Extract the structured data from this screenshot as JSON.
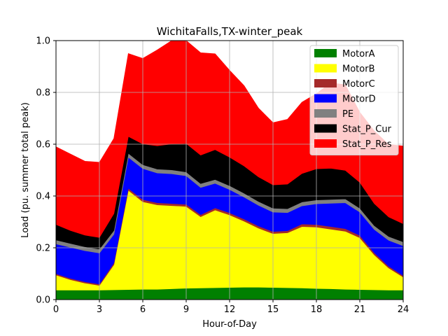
{
  "chart_data": {
    "type": "area",
    "stacked": true,
    "title": "WichitaFalls,TX-winter_peak",
    "xlabel": "Hour-of-Day",
    "ylabel": "Load (pu. summer total peak)",
    "xlim": [
      0,
      24
    ],
    "ylim": [
      0,
      1.0
    ],
    "xticks": [
      "0",
      "3",
      "6",
      "9",
      "12",
      "15",
      "18",
      "21",
      "24"
    ],
    "xtick_values": [
      0,
      3,
      6,
      9,
      12,
      15,
      18,
      21,
      24
    ],
    "yticks": [
      "0.0",
      "0.2",
      "0.4",
      "0.6",
      "0.8",
      "1.0"
    ],
    "ytick_values": [
      0,
      0.2,
      0.4,
      0.6,
      0.8,
      1.0
    ],
    "grid": true,
    "legend_position": "top-right",
    "x": [
      0,
      1,
      2,
      3,
      4,
      5,
      6,
      7,
      8,
      9,
      10,
      11,
      12,
      13,
      14,
      15,
      16,
      17,
      18,
      19,
      20,
      21,
      22,
      23,
      24
    ],
    "series": [
      {
        "name": "MotorA",
        "color": "#008000",
        "values": [
          0.037,
          0.037,
          0.037,
          0.037,
          0.038,
          0.039,
          0.04,
          0.04,
          0.042,
          0.044,
          0.045,
          0.046,
          0.047,
          0.048,
          0.048,
          0.047,
          0.046,
          0.045,
          0.043,
          0.042,
          0.04,
          0.039,
          0.038,
          0.037,
          0.037
        ]
      },
      {
        "name": "MotorB",
        "color": "#ffff00",
        "values": [
          0.058,
          0.04,
          0.027,
          0.018,
          0.097,
          0.383,
          0.338,
          0.326,
          0.321,
          0.316,
          0.275,
          0.3,
          0.28,
          0.255,
          0.228,
          0.208,
          0.212,
          0.237,
          0.237,
          0.23,
          0.224,
          0.2,
          0.135,
          0.085,
          0.05
        ]
      },
      {
        "name": "MotorC",
        "color": "#a52a2a",
        "values": [
          0.005,
          0.005,
          0.005,
          0.005,
          0.007,
          0.008,
          0.008,
          0.008,
          0.008,
          0.008,
          0.008,
          0.008,
          0.008,
          0.008,
          0.008,
          0.008,
          0.008,
          0.01,
          0.01,
          0.01,
          0.01,
          0.009,
          0.008,
          0.007,
          0.006
        ]
      },
      {
        "name": "MotorD",
        "color": "#0000ff",
        "values": [
          0.115,
          0.12,
          0.12,
          0.12,
          0.11,
          0.12,
          0.12,
          0.115,
          0.115,
          0.11,
          0.105,
          0.095,
          0.09,
          0.085,
          0.08,
          0.075,
          0.07,
          0.07,
          0.08,
          0.09,
          0.1,
          0.09,
          0.09,
          0.1,
          0.115
        ]
      },
      {
        "name": "PE",
        "color": "#808080",
        "values": [
          0.015,
          0.015,
          0.015,
          0.015,
          0.015,
          0.015,
          0.015,
          0.015,
          0.015,
          0.015,
          0.015,
          0.015,
          0.015,
          0.015,
          0.015,
          0.015,
          0.015,
          0.015,
          0.015,
          0.015,
          0.015,
          0.015,
          0.015,
          0.015,
          0.015
        ]
      },
      {
        "name": "Stat_P_Cur",
        "color": "#000000",
        "values": [
          0.06,
          0.05,
          0.045,
          0.045,
          0.065,
          0.065,
          0.08,
          0.09,
          0.1,
          0.11,
          0.11,
          0.115,
          0.11,
          0.105,
          0.095,
          0.09,
          0.095,
          0.11,
          0.12,
          0.12,
          0.11,
          0.1,
          0.085,
          0.075,
          0.07
        ]
      },
      {
        "name": "Stat_P_Res",
        "color": "#ff0000",
        "values": [
          0.3,
          0.295,
          0.285,
          0.29,
          0.29,
          0.32,
          0.33,
          0.37,
          0.4,
          0.4,
          0.395,
          0.37,
          0.335,
          0.31,
          0.265,
          0.24,
          0.25,
          0.275,
          0.29,
          0.33,
          0.33,
          0.27,
          0.28,
          0.28,
          0.3
        ]
      }
    ]
  }
}
